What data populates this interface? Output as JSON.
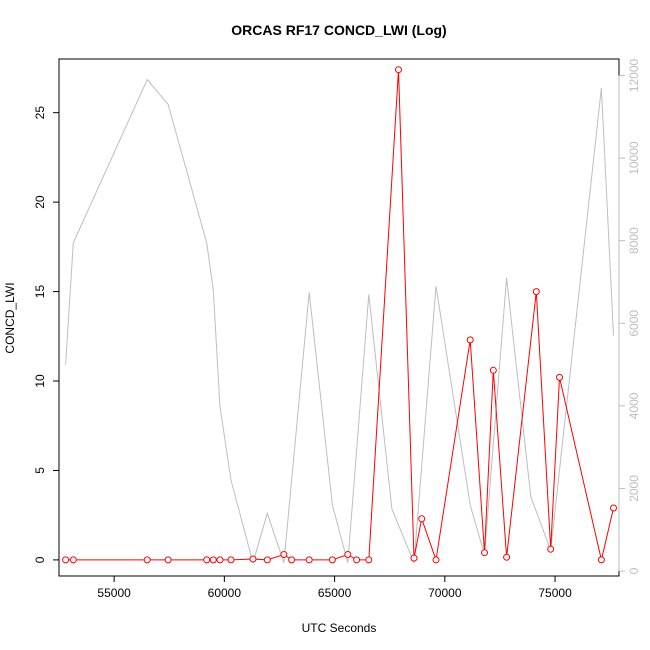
{
  "chart_data": {
    "type": "line",
    "title": "ORCAS RF17 CONCD_LWI (Log)",
    "xlabel": "UTC Seconds",
    "ylabel": "CONCD_LWI",
    "xlim": [
      52500,
      77900
    ],
    "ylim": [
      -0.9,
      28.0
    ],
    "y2lim": [
      -120,
      12400
    ],
    "x_ticks": [
      55000,
      60000,
      65000,
      70000,
      75000
    ],
    "y_ticks": [
      0,
      5,
      10,
      15,
      20,
      25
    ],
    "y2_ticks": [
      0,
      2000,
      4000,
      6000,
      8000,
      10000,
      12000
    ],
    "colors": {
      "primary": "#ff0000",
      "secondary": "#bebebe"
    },
    "series": [
      {
        "role": "primary",
        "x": [
          52800,
          53150,
          56500,
          57450,
          59200,
          59500,
          59800,
          60300,
          61300,
          61950,
          62700,
          63050,
          63850,
          64900,
          65600,
          66000,
          66550,
          67900,
          68600,
          68950,
          69600,
          71150,
          71800,
          72200,
          72800,
          74150,
          74800,
          75200,
          77100,
          77650
        ],
        "y": [
          0.0,
          0.0,
          0.0,
          0.0,
          0.0,
          0.0,
          0.0,
          0.0,
          0.05,
          0.0,
          0.3,
          0.0,
          0.0,
          0.0,
          0.3,
          0.0,
          0.0,
          27.4,
          0.1,
          2.3,
          0.0,
          12.3,
          0.4,
          10.6,
          0.15,
          15.0,
          0.6,
          10.2,
          0.0,
          2.9
        ]
      },
      {
        "role": "secondary",
        "x": [
          52800,
          53150,
          56500,
          57450,
          59200,
          59500,
          59800,
          60300,
          61300,
          61950,
          62700,
          63850,
          64900,
          65600,
          66550,
          67600,
          68600,
          69600,
          71150,
          71800,
          72800,
          73900,
          74800,
          77100,
          77650
        ],
        "y": [
          5000,
          7950,
          11900,
          11300,
          7950,
          6800,
          4000,
          2200,
          200,
          1400,
          200,
          6750,
          1600,
          200,
          6700,
          1500,
          200,
          6900,
          1600,
          400,
          7100,
          1800,
          500,
          11700,
          5700
        ]
      }
    ]
  }
}
